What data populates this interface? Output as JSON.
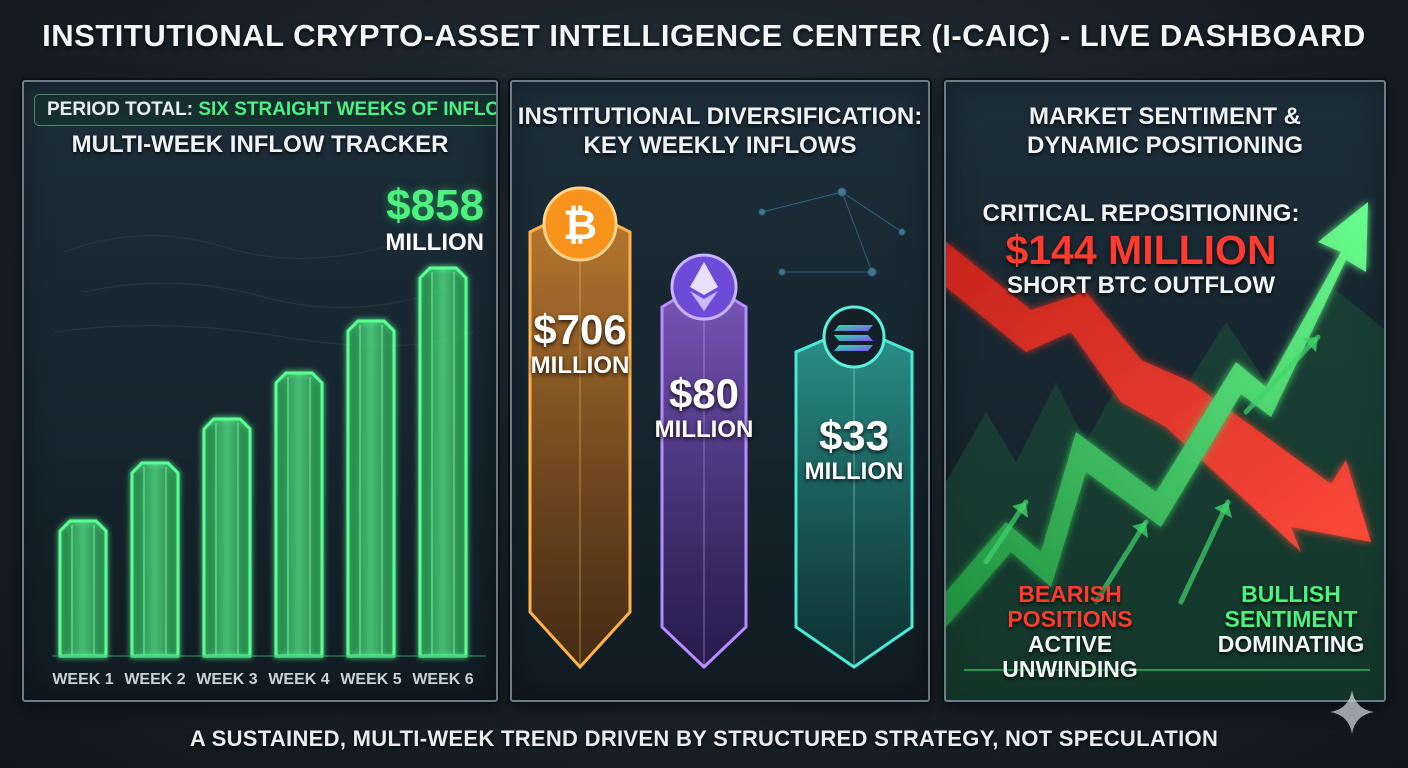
{
  "title": "INSTITUTIONAL CRYPTO-ASSET INTELLIGENCE CENTER (I-CAIC) - LIVE DASHBOARD",
  "footer": "A SUSTAINED, MULTI-WEEK TREND DRIVEN BY STRUCTURED STRATEGY, NOT SPECULATION",
  "panel1": {
    "period_label": "PERIOD TOTAL:",
    "period_value": "SIX STRAIGHT WEEKS OF INFLOWS",
    "heading": "MULTI-WEEK INFLOW TRACKER",
    "total_value": "$858",
    "total_unit": "MILLION"
  },
  "panel2": {
    "heading_line1": "INSTITUTIONAL DIVERSIFICATION:",
    "heading_line2": "KEY WEEKLY INFLOWS",
    "btc_value": "$706",
    "btc_unit": "MILLION",
    "eth_value": "$80",
    "eth_unit": "MILLION",
    "sol_value": "$33",
    "sol_unit": "MILLION"
  },
  "panel3": {
    "heading_line1": "MARKET SENTIMENT &",
    "heading_line2": "DYNAMIC POSITIONING",
    "reposition_label": "CRITICAL REPOSITIONING:",
    "reposition_value": "$144 MILLION",
    "reposition_desc": "SHORT BTC OUTFLOW",
    "bearish_line1": "BEARISH",
    "bearish_line2": "POSITIONS",
    "bearish_line3": "ACTIVE UNWINDING",
    "bullish_line1": "BULLISH",
    "bullish_line2": "SENTIMENT",
    "bullish_line3": "DOMINATING"
  },
  "colors": {
    "green": "#4ef07e",
    "orange": "#f7931a",
    "purple": "#9a5cf0",
    "teal": "#2fd6c0",
    "red": "#ff3b30"
  },
  "icons": [
    "bitcoin-icon",
    "ethereum-icon",
    "solana-icon",
    "sparkle-icon"
  ],
  "chart_data": [
    {
      "type": "bar",
      "categories": [
        "WEEK 1",
        "WEEK 2",
        "WEEK 3",
        "WEEK 4",
        "WEEK 5",
        "WEEK 6"
      ],
      "values": [
        135,
        193,
        237,
        283,
        335,
        388
      ],
      "value_scale": "relative height, unlabeled",
      "grid": false
    },
    {
      "type": "bar",
      "categories": [
        "Bitcoin",
        "Ethereum",
        "Solana"
      ],
      "values": [
        706,
        80,
        33
      ],
      "value_labels": [
        "$706",
        "$80",
        "$33"
      ],
      "unit": "MILLION"
    }
  ]
}
